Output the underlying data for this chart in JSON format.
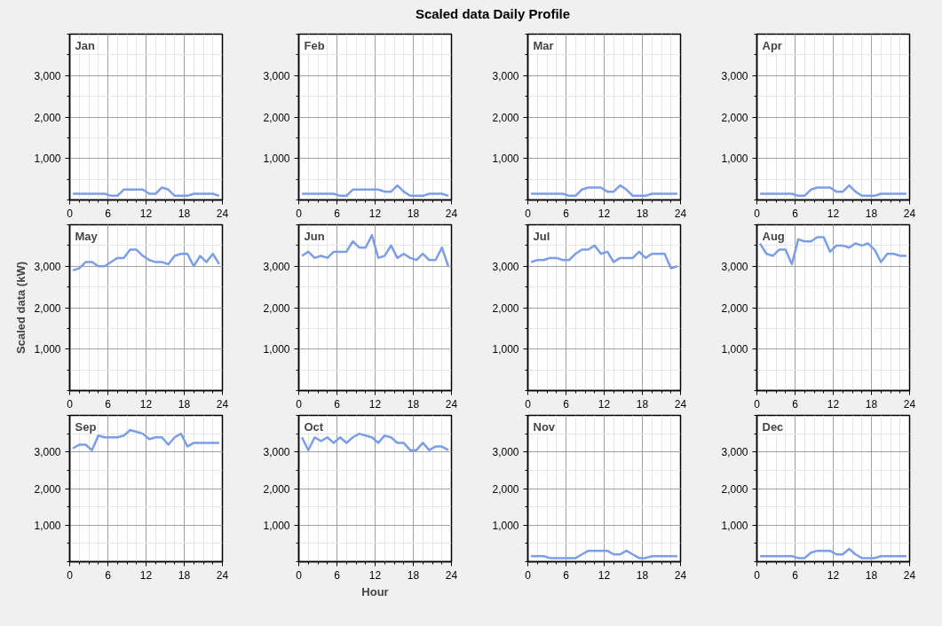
{
  "chart_data": [
    {
      "type": "line",
      "title": "Jan",
      "annotations": [
        "Scaled data Daily Profile"
      ],
      "x": [
        0.5,
        1.5,
        2.5,
        3.5,
        4.5,
        5.5,
        6.5,
        7.5,
        8.5,
        9.5,
        10.5,
        11.5,
        12.5,
        13.5,
        14.5,
        15.5,
        16.5,
        17.5,
        18.5,
        19.5,
        20.5,
        21.5,
        22.5,
        23.5
      ],
      "series": [
        {
          "color": "#7b9ee8",
          "values": [
            150,
            150,
            150,
            150,
            150,
            150,
            100,
            100,
            250,
            250,
            250,
            250,
            150,
            150,
            300,
            250,
            100,
            100,
            100,
            150,
            150,
            150,
            150,
            100
          ]
        }
      ],
      "xlim": [
        0,
        24
      ],
      "ylim": [
        0,
        4000
      ],
      "xticks": [
        0,
        6,
        12,
        18,
        24
      ],
      "yticks": [
        {
          "value": 1000,
          "label": "1,000"
        },
        {
          "value": 2000,
          "label": "2,000"
        },
        {
          "value": 3000,
          "label": "3,000"
        }
      ],
      "grid": true
    },
    {
      "type": "line",
      "title": "Feb",
      "x": [
        0.5,
        1.5,
        2.5,
        3.5,
        4.5,
        5.5,
        6.5,
        7.5,
        8.5,
        9.5,
        10.5,
        11.5,
        12.5,
        13.5,
        14.5,
        15.5,
        16.5,
        17.5,
        18.5,
        19.5,
        20.5,
        21.5,
        22.5,
        23.5
      ],
      "series": [
        {
          "color": "#7b9ee8",
          "values": [
            150,
            150,
            150,
            150,
            150,
            150,
            100,
            100,
            250,
            250,
            250,
            250,
            250,
            200,
            200,
            350,
            200,
            100,
            100,
            100,
            150,
            150,
            150,
            100
          ]
        }
      ],
      "xlim": [
        0,
        24
      ],
      "ylim": [
        0,
        4000
      ],
      "xticks": [
        0,
        6,
        12,
        18,
        24
      ],
      "yticks": [
        {
          "value": 1000,
          "label": "1,000"
        },
        {
          "value": 2000,
          "label": "2,000"
        },
        {
          "value": 3000,
          "label": "3,000"
        }
      ],
      "grid": true
    },
    {
      "type": "line",
      "title": "Mar",
      "x": [
        0.5,
        1.5,
        2.5,
        3.5,
        4.5,
        5.5,
        6.5,
        7.5,
        8.5,
        9.5,
        10.5,
        11.5,
        12.5,
        13.5,
        14.5,
        15.5,
        16.5,
        17.5,
        18.5,
        19.5,
        20.5,
        21.5,
        22.5,
        23.5
      ],
      "series": [
        {
          "color": "#7b9ee8",
          "values": [
            150,
            150,
            150,
            150,
            150,
            150,
            100,
            100,
            250,
            300,
            300,
            300,
            200,
            200,
            350,
            250,
            100,
            100,
            100,
            150,
            150,
            150,
            150,
            150
          ]
        }
      ],
      "xlim": [
        0,
        24
      ],
      "ylim": [
        0,
        4000
      ],
      "xticks": [
        0,
        6,
        12,
        18,
        24
      ],
      "yticks": [
        {
          "value": 1000,
          "label": "1,000"
        },
        {
          "value": 2000,
          "label": "2,000"
        },
        {
          "value": 3000,
          "label": "3,000"
        }
      ],
      "grid": true
    },
    {
      "type": "line",
      "title": "Apr",
      "x": [
        0.5,
        1.5,
        2.5,
        3.5,
        4.5,
        5.5,
        6.5,
        7.5,
        8.5,
        9.5,
        10.5,
        11.5,
        12.5,
        13.5,
        14.5,
        15.5,
        16.5,
        17.5,
        18.5,
        19.5,
        20.5,
        21.5,
        22.5,
        23.5
      ],
      "series": [
        {
          "color": "#7b9ee8",
          "values": [
            150,
            150,
            150,
            150,
            150,
            150,
            100,
            100,
            250,
            300,
            300,
            300,
            200,
            200,
            350,
            200,
            100,
            100,
            100,
            150,
            150,
            150,
            150,
            150
          ]
        }
      ],
      "xlim": [
        0,
        24
      ],
      "ylim": [
        0,
        4000
      ],
      "xticks": [
        0,
        6,
        12,
        18,
        24
      ],
      "yticks": [
        {
          "value": 1000,
          "label": "1,000"
        },
        {
          "value": 2000,
          "label": "2,000"
        },
        {
          "value": 3000,
          "label": "3,000"
        }
      ],
      "grid": true
    },
    {
      "type": "line",
      "title": "May",
      "ylabel": "Scaled data (kW)",
      "x": [
        0.5,
        1.5,
        2.5,
        3.5,
        4.5,
        5.5,
        6.5,
        7.5,
        8.5,
        9.5,
        10.5,
        11.5,
        12.5,
        13.5,
        14.5,
        15.5,
        16.5,
        17.5,
        18.5,
        19.5,
        20.5,
        21.5,
        22.5,
        23.5
      ],
      "series": [
        {
          "color": "#7b9ee8",
          "values": [
            2900,
            2950,
            3100,
            3100,
            3000,
            3000,
            3100,
            3200,
            3200,
            3400,
            3400,
            3250,
            3150,
            3100,
            3100,
            3050,
            3250,
            3300,
            3300,
            3000,
            3250,
            3100,
            3300,
            3050
          ]
        }
      ],
      "xlim": [
        0,
        24
      ],
      "ylim": [
        0,
        4000
      ],
      "xticks": [
        0,
        6,
        12,
        18,
        24
      ],
      "yticks": [
        {
          "value": 1000,
          "label": "1,000"
        },
        {
          "value": 2000,
          "label": "2,000"
        },
        {
          "value": 3000,
          "label": "3,000"
        }
      ],
      "grid": true
    },
    {
      "type": "line",
      "title": "Jun",
      "x": [
        0.5,
        1.5,
        2.5,
        3.5,
        4.5,
        5.5,
        6.5,
        7.5,
        8.5,
        9.5,
        10.5,
        11.5,
        12.5,
        13.5,
        14.5,
        15.5,
        16.5,
        17.5,
        18.5,
        19.5,
        20.5,
        21.5,
        22.5,
        23.5
      ],
      "series": [
        {
          "color": "#7b9ee8",
          "values": [
            3250,
            3350,
            3200,
            3250,
            3200,
            3350,
            3350,
            3350,
            3600,
            3450,
            3450,
            3750,
            3200,
            3250,
            3500,
            3200,
            3300,
            3200,
            3150,
            3300,
            3150,
            3150,
            3450,
            3000
          ]
        }
      ],
      "xlim": [
        0,
        24
      ],
      "ylim": [
        0,
        4000
      ],
      "xticks": [
        0,
        6,
        12,
        18,
        24
      ],
      "yticks": [
        {
          "value": 1000,
          "label": "1,000"
        },
        {
          "value": 2000,
          "label": "2,000"
        },
        {
          "value": 3000,
          "label": "3,000"
        }
      ],
      "grid": true
    },
    {
      "type": "line",
      "title": "Jul",
      "x": [
        0.5,
        1.5,
        2.5,
        3.5,
        4.5,
        5.5,
        6.5,
        7.5,
        8.5,
        9.5,
        10.5,
        11.5,
        12.5,
        13.5,
        14.5,
        15.5,
        16.5,
        17.5,
        18.5,
        19.5,
        20.5,
        21.5,
        22.5,
        23.5
      ],
      "series": [
        {
          "color": "#7b9ee8",
          "values": [
            3100,
            3150,
            3150,
            3200,
            3200,
            3150,
            3150,
            3300,
            3400,
            3400,
            3500,
            3300,
            3350,
            3100,
            3200,
            3200,
            3200,
            3350,
            3200,
            3300,
            3300,
            3300,
            2950,
            3000
          ]
        }
      ],
      "xlim": [
        0,
        24
      ],
      "ylim": [
        0,
        4000
      ],
      "xticks": [
        0,
        6,
        12,
        18,
        24
      ],
      "yticks": [
        {
          "value": 1000,
          "label": "1,000"
        },
        {
          "value": 2000,
          "label": "2,000"
        },
        {
          "value": 3000,
          "label": "3,000"
        }
      ],
      "grid": true
    },
    {
      "type": "line",
      "title": "Aug",
      "x": [
        0.5,
        1.5,
        2.5,
        3.5,
        4.5,
        5.5,
        6.5,
        7.5,
        8.5,
        9.5,
        10.5,
        11.5,
        12.5,
        13.5,
        14.5,
        15.5,
        16.5,
        17.5,
        18.5,
        19.5,
        20.5,
        21.5,
        22.5,
        23.5
      ],
      "series": [
        {
          "color": "#7b9ee8",
          "values": [
            3550,
            3300,
            3250,
            3400,
            3400,
            3050,
            3650,
            3600,
            3600,
            3700,
            3700,
            3350,
            3500,
            3500,
            3450,
            3550,
            3500,
            3550,
            3400,
            3100,
            3300,
            3300,
            3250,
            3250
          ]
        }
      ],
      "xlim": [
        0,
        24
      ],
      "ylim": [
        0,
        4000
      ],
      "xticks": [
        0,
        6,
        12,
        18,
        24
      ],
      "yticks": [
        {
          "value": 1000,
          "label": "1,000"
        },
        {
          "value": 2000,
          "label": "2,000"
        },
        {
          "value": 3000,
          "label": "3,000"
        }
      ],
      "grid": true
    },
    {
      "type": "line",
      "title": "Sep",
      "x": [
        0.5,
        1.5,
        2.5,
        3.5,
        4.5,
        5.5,
        6.5,
        7.5,
        8.5,
        9.5,
        10.5,
        11.5,
        12.5,
        13.5,
        14.5,
        15.5,
        16.5,
        17.5,
        18.5,
        19.5,
        20.5,
        21.5,
        22.5,
        23.5
      ],
      "series": [
        {
          "color": "#7b9ee8",
          "values": [
            3100,
            3200,
            3200,
            3050,
            3450,
            3400,
            3400,
            3400,
            3450,
            3600,
            3550,
            3500,
            3350,
            3400,
            3400,
            3200,
            3400,
            3500,
            3150,
            3250,
            3250,
            3250,
            3250,
            3250
          ]
        }
      ],
      "xlim": [
        0,
        24
      ],
      "ylim": [
        0,
        4000
      ],
      "xticks": [
        0,
        6,
        12,
        18,
        24
      ],
      "yticks": [
        {
          "value": 1000,
          "label": "1,000"
        },
        {
          "value": 2000,
          "label": "2,000"
        },
        {
          "value": 3000,
          "label": "3,000"
        }
      ],
      "grid": true
    },
    {
      "type": "line",
      "title": "Oct",
      "xlabel": "Hour",
      "x": [
        0.5,
        1.5,
        2.5,
        3.5,
        4.5,
        5.5,
        6.5,
        7.5,
        8.5,
        9.5,
        10.5,
        11.5,
        12.5,
        13.5,
        14.5,
        15.5,
        16.5,
        17.5,
        18.5,
        19.5,
        20.5,
        21.5,
        22.5,
        23.5
      ],
      "series": [
        {
          "color": "#7b9ee8",
          "values": [
            3400,
            3050,
            3400,
            3300,
            3400,
            3250,
            3400,
            3250,
            3400,
            3500,
            3450,
            3400,
            3250,
            3450,
            3400,
            3250,
            3250,
            3050,
            3050,
            3250,
            3050,
            3150,
            3150,
            3050
          ]
        }
      ],
      "xlim": [
        0,
        24
      ],
      "ylim": [
        0,
        4000
      ],
      "xticks": [
        0,
        6,
        12,
        18,
        24
      ],
      "yticks": [
        {
          "value": 1000,
          "label": "1,000"
        },
        {
          "value": 2000,
          "label": "2,000"
        },
        {
          "value": 3000,
          "label": "3,000"
        }
      ],
      "grid": true
    },
    {
      "type": "line",
      "title": "Nov",
      "x": [
        0.5,
        1.5,
        2.5,
        3.5,
        4.5,
        5.5,
        6.5,
        7.5,
        8.5,
        9.5,
        10.5,
        11.5,
        12.5,
        13.5,
        14.5,
        15.5,
        16.5,
        17.5,
        18.5,
        19.5,
        20.5,
        21.5,
        22.5,
        23.5
      ],
      "series": [
        {
          "color": "#7b9ee8",
          "values": [
            150,
            150,
            150,
            100,
            100,
            100,
            100,
            100,
            200,
            300,
            300,
            300,
            300,
            200,
            200,
            300,
            200,
            100,
            100,
            150,
            150,
            150,
            150,
            150
          ]
        }
      ],
      "xlim": [
        0,
        24
      ],
      "ylim": [
        0,
        4000
      ],
      "xticks": [
        0,
        6,
        12,
        18,
        24
      ],
      "yticks": [
        {
          "value": 1000,
          "label": "1,000"
        },
        {
          "value": 2000,
          "label": "2,000"
        },
        {
          "value": 3000,
          "label": "3,000"
        }
      ],
      "grid": true
    },
    {
      "type": "line",
      "title": "Dec",
      "x": [
        0.5,
        1.5,
        2.5,
        3.5,
        4.5,
        5.5,
        6.5,
        7.5,
        8.5,
        9.5,
        10.5,
        11.5,
        12.5,
        13.5,
        14.5,
        15.5,
        16.5,
        17.5,
        18.5,
        19.5,
        20.5,
        21.5,
        22.5,
        23.5
      ],
      "series": [
        {
          "color": "#7b9ee8",
          "values": [
            150,
            150,
            150,
            150,
            150,
            150,
            100,
            100,
            250,
            300,
            300,
            300,
            200,
            200,
            350,
            200,
            100,
            100,
            100,
            150,
            150,
            150,
            150,
            150
          ]
        }
      ],
      "xlim": [
        0,
        24
      ],
      "ylim": [
        0,
        4000
      ],
      "xticks": [
        0,
        6,
        12,
        18,
        24
      ],
      "yticks": [
        {
          "value": 1000,
          "label": "1,000"
        },
        {
          "value": 2000,
          "label": "2,000"
        },
        {
          "value": 3000,
          "label": "3,000"
        }
      ],
      "grid": true
    }
  ]
}
